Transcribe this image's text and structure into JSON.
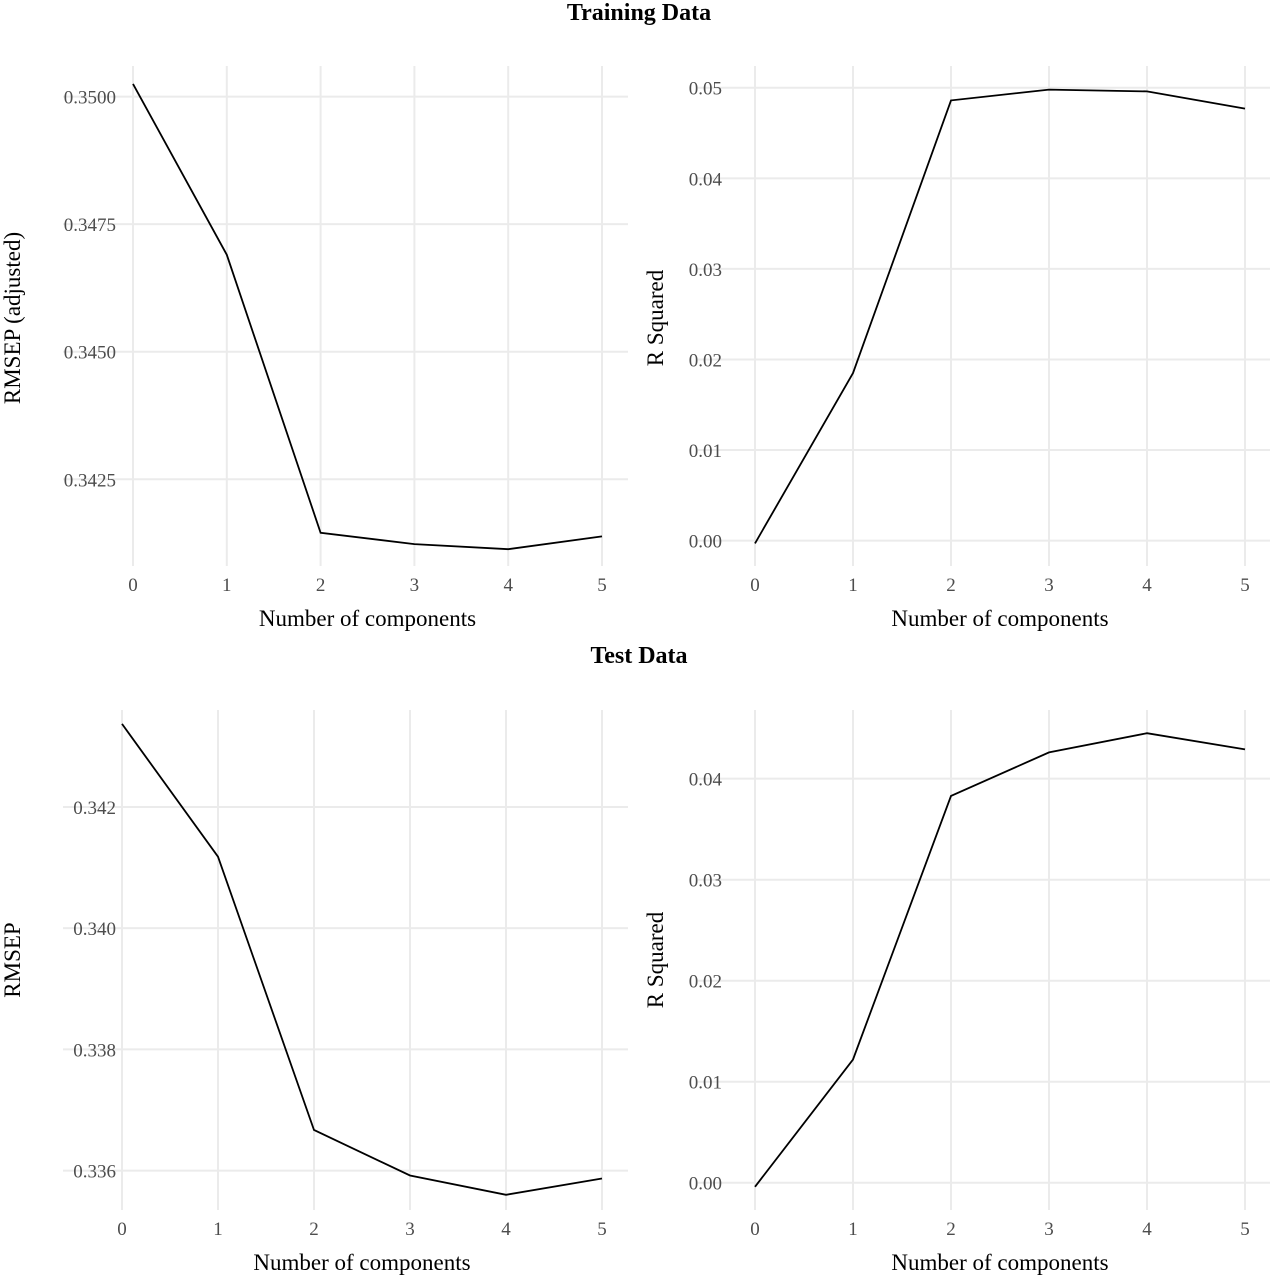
{
  "titles": {
    "training": "Training Data",
    "test": "Test Data"
  },
  "chart_data": [
    {
      "type": "line",
      "section": "Training Data",
      "xlabel": "Number of components",
      "ylabel": "RMSEP (adjusted)",
      "x": [
        0,
        1,
        2,
        3,
        4,
        5
      ],
      "y": [
        0.35025,
        0.3469,
        0.34145,
        0.34123,
        0.34113,
        0.34138
      ],
      "xticks": [
        "0",
        "1",
        "2",
        "3",
        "4",
        "5"
      ],
      "yticks": [
        0.3425,
        0.345,
        0.3475,
        0.35
      ],
      "ytick_labels": [
        "0.3425",
        "0.3450",
        "0.3475",
        "0.3500"
      ],
      "xlim": [
        0,
        5
      ],
      "ylim": [
        0.3408,
        0.3506
      ],
      "grid": true,
      "color": "#000000"
    },
    {
      "type": "line",
      "section": "Training Data",
      "xlabel": "Number of components",
      "ylabel": "R Squared",
      "x": [
        0,
        1,
        2,
        3,
        4,
        5
      ],
      "y": [
        -0.0003,
        0.0185,
        0.0486,
        0.0498,
        0.0496,
        0.0477
      ],
      "xticks": [
        "0",
        "1",
        "2",
        "3",
        "4",
        "5"
      ],
      "yticks": [
        0.0,
        0.01,
        0.02,
        0.03,
        0.04,
        0.05
      ],
      "ytick_labels": [
        "0.00",
        "0.01",
        "0.02",
        "0.03",
        "0.04",
        "0.05"
      ],
      "xlim": [
        0,
        5
      ],
      "ylim": [
        -0.0028,
        0.0524
      ],
      "grid": true,
      "color": "#000000"
    },
    {
      "type": "line",
      "section": "Test Data",
      "xlabel": "Number of components",
      "ylabel": "RMSEP",
      "x": [
        0,
        1,
        2,
        3,
        4,
        5
      ],
      "y": [
        0.34337,
        0.34118,
        0.33667,
        0.33592,
        0.3356,
        0.33587
      ],
      "xticks": [
        "0",
        "1",
        "2",
        "3",
        "4",
        "5"
      ],
      "yticks": [
        0.336,
        0.338,
        0.34,
        0.342
      ],
      "ytick_labels": [
        "0.336",
        "0.338",
        "0.340",
        "0.342"
      ],
      "xlim": [
        0,
        5
      ],
      "ylim": [
        0.33535,
        0.3436
      ],
      "grid": true,
      "color": "#000000"
    },
    {
      "type": "line",
      "section": "Test Data",
      "xlabel": "Number of components",
      "ylabel": "R Squared",
      "x": [
        0,
        1,
        2,
        3,
        4,
        5
      ],
      "y": [
        -0.0004,
        0.0122,
        0.0383,
        0.0426,
        0.0445,
        0.0429
      ],
      "xticks": [
        "0",
        "1",
        "2",
        "3",
        "4",
        "5"
      ],
      "yticks": [
        0.0,
        0.01,
        0.02,
        0.03,
        0.04
      ],
      "ytick_labels": [
        "0.00",
        "0.01",
        "0.02",
        "0.03",
        "0.04"
      ],
      "xlim": [
        0,
        5
      ],
      "ylim": [
        -0.0027,
        0.0468
      ],
      "grid": true,
      "color": "#000000"
    }
  ]
}
